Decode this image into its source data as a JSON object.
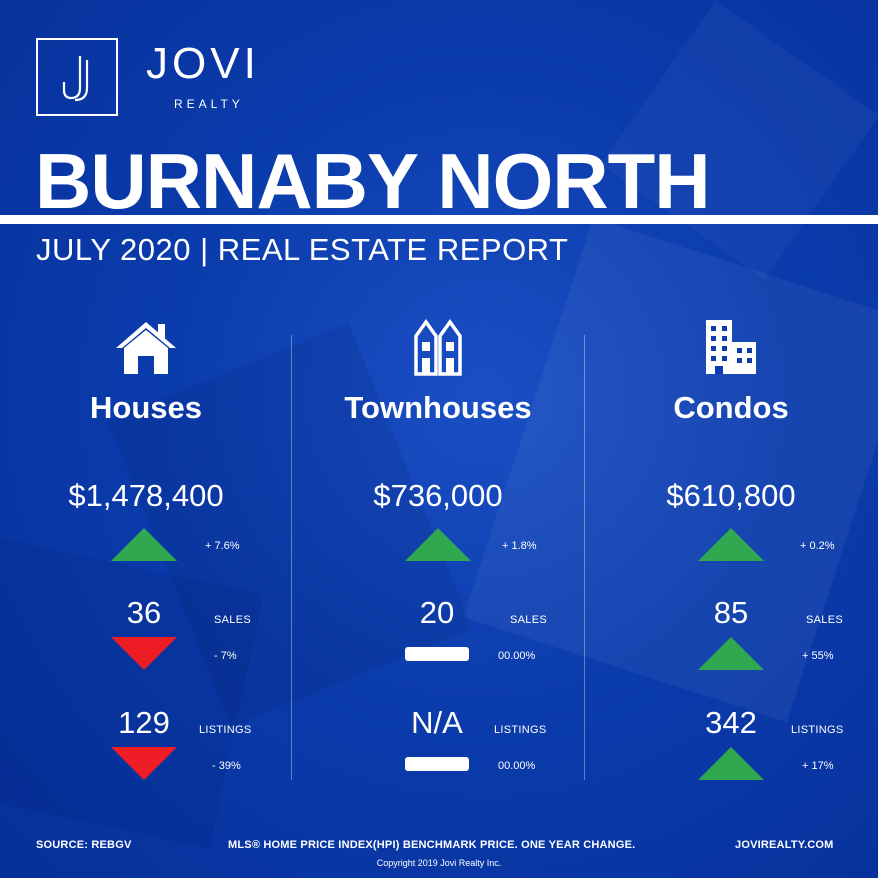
{
  "brand": {
    "name": "JOVI",
    "sub": "REALTY",
    "logo_letter": "J"
  },
  "title": "BURNABY NORTH",
  "subtitle": "JULY 2020 | REAL ESTATE REPORT",
  "columns": [
    {
      "icon": "house-icon",
      "name": "Houses",
      "price": "$1,478,400",
      "price_change": "+ 7.6%",
      "price_trend": "up",
      "sales": "36",
      "sales_label": "SALES",
      "sales_change": "- 7%",
      "sales_trend": "down",
      "listings": "129",
      "listings_label": "LISTINGS",
      "listings_change": "- 39%",
      "listings_trend": "down"
    },
    {
      "icon": "townhouse-icon",
      "name": "Townhouses",
      "price": "$736,000",
      "price_change": "+ 1.8%",
      "price_trend": "up",
      "sales": "20",
      "sales_label": "SALES",
      "sales_change": "00.00%",
      "sales_trend": "flat",
      "listings": "N/A",
      "listings_label": "LISTINGS",
      "listings_change": "00.00%",
      "listings_trend": "flat"
    },
    {
      "icon": "condo-building-icon",
      "name": "Condos",
      "price": "$610,800",
      "price_change": "+ 0.2%",
      "price_trend": "up",
      "sales": "85",
      "sales_label": "SALES",
      "sales_change": "+ 55%",
      "sales_trend": "up",
      "listings": "342",
      "listings_label": "LISTINGS",
      "listings_change": "+ 17%",
      "listings_trend": "up"
    }
  ],
  "colors": {
    "background": "#0b3cac",
    "up": "#2fa84f",
    "down": "#ee1c24",
    "flat": "#ffffff"
  },
  "footer": {
    "source": "SOURCE:  REBGV",
    "note": "MLS® HOME PRICE INDEX(HPI) BENCHMARK PRICE. ONE YEAR CHANGE.",
    "site": "JOVIREALTY.COM",
    "copyright": "Copyright 2019 Jovi Realty Inc."
  }
}
